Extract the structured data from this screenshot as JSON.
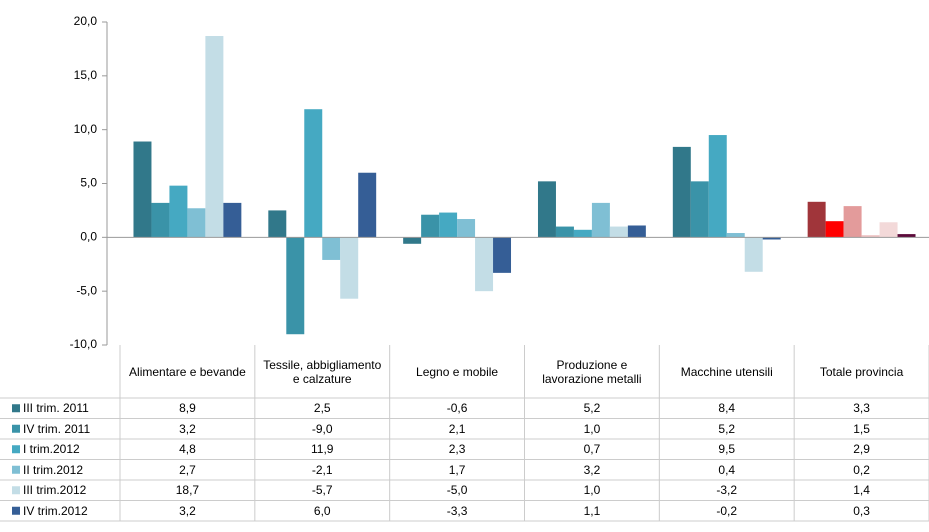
{
  "chart_data": {
    "type": "bar",
    "categories": [
      "Alimentare e bevande",
      "Tessile, abbigliamento e calzature",
      "Legno e mobile",
      "Produzione e lavorazione metalli",
      "Macchine utensili",
      "Totale provincia"
    ],
    "series": [
      {
        "name": "III trim. 2011",
        "color": "#31788a",
        "colors": [
          "#31788a",
          "#31788a",
          "#31788a",
          "#31788a",
          "#31788a",
          "#a0353a"
        ],
        "values": [
          8.9,
          2.5,
          -0.6,
          5.2,
          8.4,
          3.3
        ],
        "value_labels": [
          "8,9",
          "2,5",
          "-0,6",
          "5,2",
          "8,4",
          "3,3"
        ]
      },
      {
        "name": "IV trim. 2011",
        "color": "#3a93a8",
        "colors": [
          "#3a93a8",
          "#3a93a8",
          "#3a93a8",
          "#3a93a8",
          "#3a93a8",
          "#ff0000"
        ],
        "values": [
          3.2,
          -9.0,
          2.1,
          1.0,
          5.2,
          1.5
        ],
        "value_labels": [
          "3,2",
          "-9,0",
          "2,1",
          "1,0",
          "5,2",
          "1,5"
        ]
      },
      {
        "name": "I trim.2012",
        "color": "#45a9c2",
        "colors": [
          "#45a9c2",
          "#45a9c2",
          "#45a9c2",
          "#45a9c2",
          "#45a9c2",
          "#e39b9b"
        ],
        "values": [
          4.8,
          11.9,
          2.3,
          0.7,
          9.5,
          2.9
        ],
        "value_labels": [
          "4,8",
          "11,9",
          "2,3",
          "0,7",
          "9,5",
          "2,9"
        ]
      },
      {
        "name": "II trim.2012",
        "color": "#7fbfd4",
        "colors": [
          "#7fbfd4",
          "#7fbfd4",
          "#7fbfd4",
          "#7fbfd4",
          "#7fbfd4",
          "#eec4c4"
        ],
        "values": [
          2.7,
          -2.1,
          1.7,
          3.2,
          0.4,
          0.2
        ],
        "value_labels": [
          "2,7",
          "-2,1",
          "1,7",
          "3,2",
          "0,4",
          "0,2"
        ]
      },
      {
        "name": "III trim.2012",
        "color": "#c3dde6",
        "colors": [
          "#c3dde6",
          "#c3dde6",
          "#c3dde6",
          "#c3dde6",
          "#c3dde6",
          "#f3d9d9"
        ],
        "values": [
          18.7,
          -5.7,
          -5.0,
          1.0,
          -3.2,
          1.4
        ],
        "value_labels": [
          "18,7",
          "-5,7",
          "-5,0",
          "1,0",
          "-3,2",
          "1,4"
        ]
      },
      {
        "name": "IV trim.2012",
        "color": "#355e96",
        "colors": [
          "#355e96",
          "#355e96",
          "#355e96",
          "#355e96",
          "#355e96",
          "#5c0a3a"
        ],
        "values": [
          3.2,
          6.0,
          -3.3,
          1.1,
          -0.2,
          0.3
        ],
        "value_labels": [
          "3,2",
          "6,0",
          "-3,3",
          "1,1",
          "-0,2",
          "0,3"
        ]
      }
    ],
    "ylim": [
      -10,
      20
    ],
    "yticks": [
      {
        "value": -10,
        "label": "-10,0"
      },
      {
        "value": -5,
        "label": "-5,0"
      },
      {
        "value": 0,
        "label": "0,0"
      },
      {
        "value": 5,
        "label": "5,0"
      },
      {
        "value": 10,
        "label": "10,0"
      },
      {
        "value": 15,
        "label": "15,0"
      },
      {
        "value": 20,
        "label": "20,0"
      }
    ],
    "grid": false
  }
}
